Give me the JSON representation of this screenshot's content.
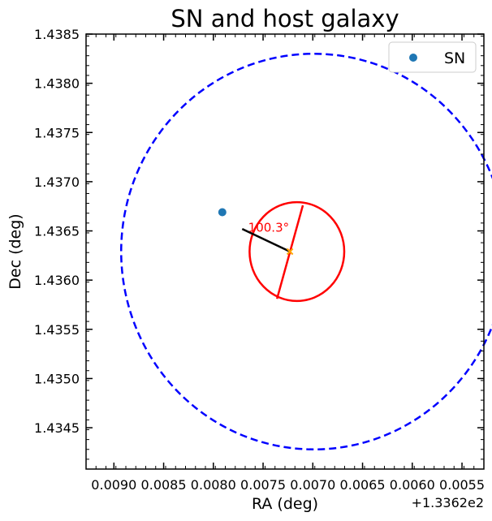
{
  "chart_data": {
    "type": "scatter",
    "title": "SN and host galaxy",
    "xlabel": "RA (deg)",
    "ylabel": "Dec (deg)",
    "x_offset_label": "+1.3362e2",
    "x_inverted": true,
    "xlim": [
      0.00928,
      0.00528
    ],
    "ylim": [
      1.43408,
      1.4385
    ],
    "xticks": [
      0.009,
      0.0085,
      0.008,
      0.0075,
      0.007,
      0.0065,
      0.006,
      0.0055
    ],
    "xtick_labels": [
      "0.0090",
      "0.0085",
      "0.0080",
      "0.0075",
      "0.0070",
      "0.0065",
      "0.0060",
      "0.0055"
    ],
    "yticks": [
      1.4345,
      1.435,
      1.4355,
      1.436,
      1.4365,
      1.437,
      1.4375,
      1.438,
      1.4385
    ],
    "ytick_labels": [
      "1.4345",
      "1.4350",
      "1.4355",
      "1.4360",
      "1.4365",
      "1.4370",
      "1.4375",
      "1.4380",
      "1.4385"
    ],
    "legend": {
      "position": "top-right",
      "entries": [
        "SN"
      ]
    },
    "sn_point": {
      "x": 0.00791,
      "y": 1.43669,
      "color": "#1f77b4"
    },
    "host_center": {
      "x": 0.00723,
      "y": 1.43629,
      "color": "orange"
    },
    "outer_ellipse": {
      "cx": 0.00699,
      "cy": 1.43629,
      "rx": 0.001937,
      "ry": 0.00201,
      "color": "#0000ff",
      "style": "dashed"
    },
    "inner_ellipse": {
      "cx": 0.00716,
      "cy": 1.43629,
      "rx": 0.000476,
      "ry": 0.000502,
      "color": "#ff0000"
    },
    "major_axis": {
      "p1": [
        0.0071,
        1.43676
      ],
      "p2": [
        0.00736,
        1.43581
      ],
      "color": "#ff0000"
    },
    "pa_line": {
      "p1": [
        0.00771,
        1.43652
      ],
      "p2": [
        0.00723,
        1.43629
      ],
      "color": "#000000"
    },
    "annotation": {
      "text": "100.3°",
      "x": 0.00765,
      "y": 1.43649,
      "color": "#ff0000"
    }
  }
}
